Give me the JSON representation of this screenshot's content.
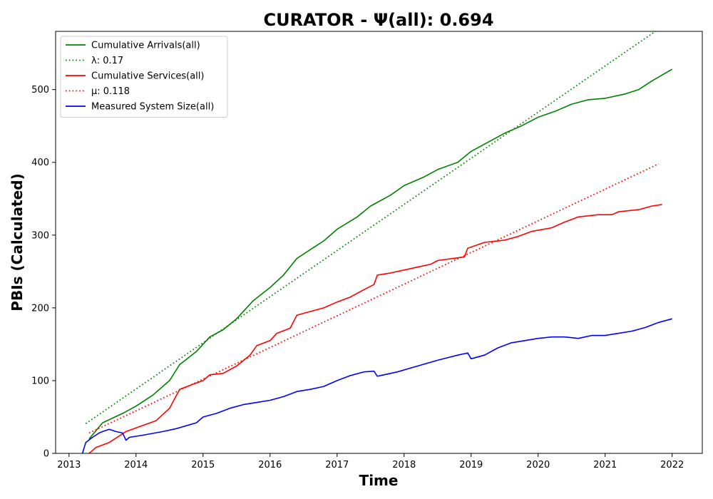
{
  "chart_data": {
    "type": "line",
    "title": "CURATOR -  Ψ(all): 0.694",
    "xlabel": "Time",
    "ylabel": "PBIs (Calculated)",
    "xlim": [
      2012.8,
      2022.45
    ],
    "ylim": [
      0,
      580
    ],
    "x_ticks": [
      2013,
      2014,
      2015,
      2016,
      2017,
      2018,
      2019,
      2020,
      2021,
      2022
    ],
    "y_ticks": [
      0,
      100,
      200,
      300,
      400,
      500
    ],
    "legend_position": "upper-left",
    "grid": false,
    "series": [
      {
        "name": "Cumulative Arrivals(all)",
        "color": "#008000",
        "style": "solid",
        "points": [
          [
            2013.3,
            20
          ],
          [
            2013.5,
            42
          ],
          [
            2013.8,
            55
          ],
          [
            2014.0,
            65
          ],
          [
            2014.25,
            80
          ],
          [
            2014.5,
            100
          ],
          [
            2014.65,
            122
          ],
          [
            2014.9,
            140
          ],
          [
            2015.1,
            160
          ],
          [
            2015.3,
            170
          ],
          [
            2015.5,
            185
          ],
          [
            2015.75,
            210
          ],
          [
            2016.0,
            228
          ],
          [
            2016.2,
            245
          ],
          [
            2016.4,
            268
          ],
          [
            2016.6,
            280
          ],
          [
            2016.8,
            292
          ],
          [
            2017.0,
            308
          ],
          [
            2017.3,
            325
          ],
          [
            2017.5,
            340
          ],
          [
            2017.8,
            355
          ],
          [
            2018.0,
            368
          ],
          [
            2018.3,
            380
          ],
          [
            2018.5,
            390
          ],
          [
            2018.8,
            400
          ],
          [
            2019.0,
            415
          ],
          [
            2019.2,
            425
          ],
          [
            2019.5,
            440
          ],
          [
            2019.75,
            450
          ],
          [
            2020.0,
            462
          ],
          [
            2020.25,
            470
          ],
          [
            2020.5,
            480
          ],
          [
            2020.75,
            486
          ],
          [
            2021.0,
            488
          ],
          [
            2021.3,
            494
          ],
          [
            2021.5,
            500
          ],
          [
            2021.7,
            512
          ],
          [
            2022.0,
            528
          ]
        ]
      },
      {
        "name": "λ: 0.17",
        "color": "#008000",
        "style": "dotted",
        "points": [
          [
            2013.25,
            41
          ],
          [
            2021.75,
            580
          ]
        ]
      },
      {
        "name": "Cumulative Services(all)",
        "color": "#ff0000",
        "style": "solid",
        "points": [
          [
            2013.3,
            0
          ],
          [
            2013.4,
            8
          ],
          [
            2013.6,
            15
          ],
          [
            2013.85,
            30
          ],
          [
            2014.0,
            35
          ],
          [
            2014.3,
            45
          ],
          [
            2014.5,
            62
          ],
          [
            2014.65,
            88
          ],
          [
            2014.85,
            95
          ],
          [
            2015.0,
            100
          ],
          [
            2015.1,
            108
          ],
          [
            2015.3,
            110
          ],
          [
            2015.5,
            120
          ],
          [
            2015.7,
            135
          ],
          [
            2015.8,
            148
          ],
          [
            2016.0,
            155
          ],
          [
            2016.1,
            165
          ],
          [
            2016.3,
            172
          ],
          [
            2016.4,
            190
          ],
          [
            2016.6,
            195
          ],
          [
            2016.8,
            200
          ],
          [
            2017.0,
            208
          ],
          [
            2017.2,
            215
          ],
          [
            2017.4,
            225
          ],
          [
            2017.55,
            232
          ],
          [
            2017.6,
            245
          ],
          [
            2017.8,
            248
          ],
          [
            2018.0,
            252
          ],
          [
            2018.2,
            256
          ],
          [
            2018.4,
            260
          ],
          [
            2018.5,
            265
          ],
          [
            2018.9,
            270
          ],
          [
            2018.95,
            282
          ],
          [
            2019.2,
            290
          ],
          [
            2019.5,
            293
          ],
          [
            2019.7,
            298
          ],
          [
            2019.9,
            305
          ],
          [
            2020.2,
            310
          ],
          [
            2020.4,
            318
          ],
          [
            2020.6,
            325
          ],
          [
            2020.9,
            328
          ],
          [
            2021.1,
            328
          ],
          [
            2021.2,
            332
          ],
          [
            2021.5,
            335
          ],
          [
            2021.7,
            340
          ],
          [
            2021.85,
            342
          ]
        ]
      },
      {
        "name": "μ: 0.118",
        "color": "#ff0000",
        "style": "dotted",
        "points": [
          [
            2013.3,
            28
          ],
          [
            2021.8,
            398
          ]
        ]
      },
      {
        "name": "Measured System Size(all)",
        "color": "#0000ff",
        "style": "solid",
        "points": [
          [
            2013.2,
            0
          ],
          [
            2013.25,
            15
          ],
          [
            2013.35,
            22
          ],
          [
            2013.45,
            28
          ],
          [
            2013.5,
            30
          ],
          [
            2013.6,
            33
          ],
          [
            2013.7,
            30
          ],
          [
            2013.8,
            28
          ],
          [
            2013.85,
            18
          ],
          [
            2013.9,
            22
          ],
          [
            2014.1,
            25
          ],
          [
            2014.4,
            30
          ],
          [
            2014.6,
            34
          ],
          [
            2014.75,
            38
          ],
          [
            2014.9,
            42
          ],
          [
            2015.0,
            50
          ],
          [
            2015.2,
            55
          ],
          [
            2015.4,
            62
          ],
          [
            2015.6,
            67
          ],
          [
            2015.8,
            70
          ],
          [
            2016.0,
            73
          ],
          [
            2016.2,
            78
          ],
          [
            2016.4,
            85
          ],
          [
            2016.6,
            88
          ],
          [
            2016.8,
            92
          ],
          [
            2017.0,
            100
          ],
          [
            2017.2,
            107
          ],
          [
            2017.4,
            112
          ],
          [
            2017.55,
            113
          ],
          [
            2017.6,
            106
          ],
          [
            2017.9,
            112
          ],
          [
            2018.2,
            120
          ],
          [
            2018.5,
            128
          ],
          [
            2018.8,
            135
          ],
          [
            2018.95,
            138
          ],
          [
            2019.0,
            130
          ],
          [
            2019.2,
            135
          ],
          [
            2019.4,
            145
          ],
          [
            2019.6,
            152
          ],
          [
            2019.8,
            155
          ],
          [
            2020.0,
            158
          ],
          [
            2020.2,
            160
          ],
          [
            2020.4,
            160
          ],
          [
            2020.6,
            158
          ],
          [
            2020.8,
            162
          ],
          [
            2021.0,
            162
          ],
          [
            2021.2,
            165
          ],
          [
            2021.4,
            168
          ],
          [
            2021.6,
            173
          ],
          [
            2021.8,
            180
          ],
          [
            2022.0,
            185
          ]
        ]
      }
    ]
  }
}
